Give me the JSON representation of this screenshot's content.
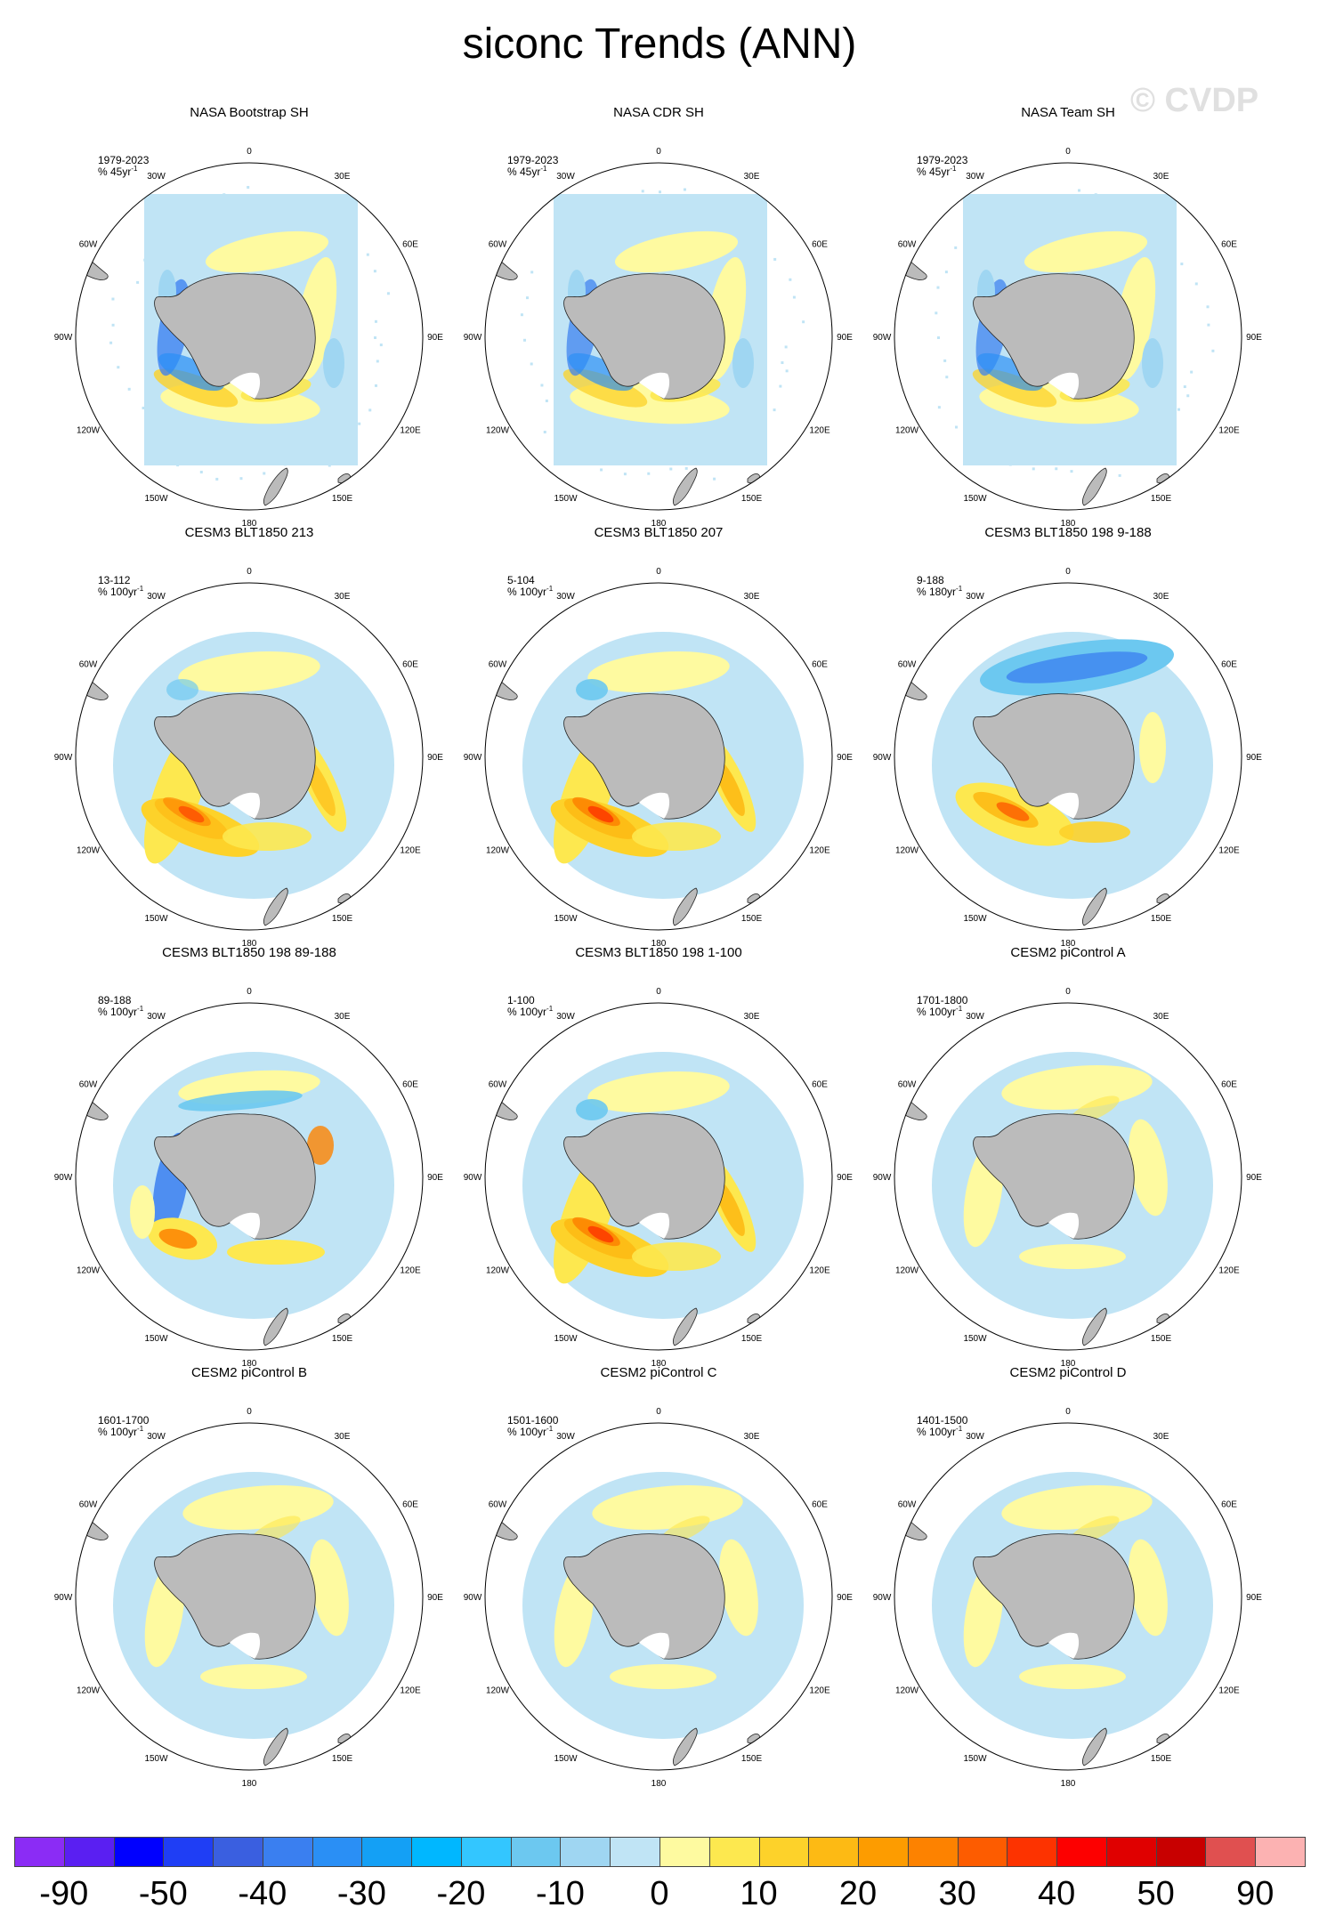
{
  "title": "siconc Trends (ANN)",
  "watermark": "© CVDP",
  "longitude_labels": [
    "0",
    "30E",
    "60E",
    "90E",
    "120E",
    "150E",
    "180",
    "150W",
    "120W",
    "90W",
    "60W",
    "30W"
  ],
  "panels": [
    {
      "title": "NASA Bootstrap SH",
      "period": "1979-2023",
      "units": "% 45yr",
      "pattern": "obs",
      "strength": 0.9
    },
    {
      "title": "NASA CDR SH",
      "period": "1979-2023",
      "units": "% 45yr",
      "pattern": "obs",
      "strength": 0.85
    },
    {
      "title": "NASA Team SH",
      "period": "1979-2023",
      "units": "% 45yr",
      "pattern": "obs",
      "strength": 0.85
    },
    {
      "title": "CESM3 BLT1850 213",
      "period": "13-112",
      "units": "% 100yr",
      "pattern": "warm",
      "strength": 0.75
    },
    {
      "title": "CESM3 BLT1850 207",
      "period": "5-104",
      "units": "% 100yr",
      "pattern": "warm",
      "strength": 1.0
    },
    {
      "title": "CESM3 BLT1850 198 9-188",
      "period": "9-188",
      "units": "% 180yr",
      "pattern": "cool",
      "strength": 0.85
    },
    {
      "title": "CESM3 BLT1850 198 89-188",
      "period": "89-188",
      "units": "% 100yr",
      "pattern": "mixed",
      "strength": 0.8
    },
    {
      "title": "CESM3 BLT1850 198 1-100",
      "period": "1-100",
      "units": "% 100yr",
      "pattern": "warm",
      "strength": 1.0
    },
    {
      "title": "CESM2 piControl A",
      "period": "1701-1800",
      "units": "% 100yr",
      "pattern": "weak",
      "strength": 0.35
    },
    {
      "title": "CESM2 piControl B",
      "period": "1601-1700",
      "units": "% 100yr",
      "pattern": "weak",
      "strength": 0.3
    },
    {
      "title": "CESM2 piControl C",
      "period": "1501-1600",
      "units": "% 100yr",
      "pattern": "weak",
      "strength": 0.3
    },
    {
      "title": "CESM2 piControl D",
      "period": "1401-1500",
      "units": "% 100yr",
      "pattern": "weak",
      "strength": 0.3
    }
  ],
  "colorbar": {
    "colors": [
      "#8b2cf5",
      "#5a1ff2",
      "#0000ff",
      "#1f3ef5",
      "#3a5fe0",
      "#3a7ff0",
      "#2a8ff5",
      "#14a0f5",
      "#00b7ff",
      "#33c6ff",
      "#6cc8f0",
      "#9fd6f2",
      "#c0e4f5",
      "#fefaa0",
      "#fde84f",
      "#fdd22a",
      "#fdba14",
      "#fd9c00",
      "#fd8200",
      "#fd5c00",
      "#fd3300",
      "#fd0000",
      "#e00000",
      "#c80000",
      "#e05050",
      "#fcb2b2"
    ],
    "labels": [
      "-90",
      "-50",
      "-40",
      "-30",
      "-20",
      "-10",
      "0",
      "10",
      "20",
      "30",
      "40",
      "50",
      "90"
    ]
  }
}
